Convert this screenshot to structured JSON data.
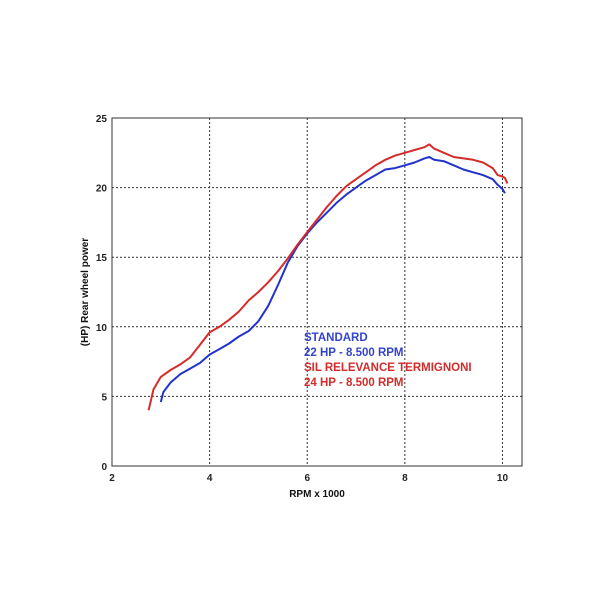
{
  "chart_data": {
    "type": "line",
    "xlabel": "RPM x 1000",
    "ylabel": "(HP) Rear wheel power",
    "xlim": [
      2,
      10.4
    ],
    "ylim": [
      0,
      25
    ],
    "x_ticks": [
      2,
      4,
      6,
      8,
      10
    ],
    "y_ticks": [
      0,
      5,
      10,
      15,
      20,
      25
    ],
    "grid": true,
    "series": [
      {
        "name": "STANDARD",
        "color": "#2233cc",
        "points": [
          [
            3.0,
            4.6
          ],
          [
            3.05,
            5.3
          ],
          [
            3.2,
            6.0
          ],
          [
            3.4,
            6.6
          ],
          [
            3.6,
            7.0
          ],
          [
            3.8,
            7.4
          ],
          [
            4.0,
            8.0
          ],
          [
            4.2,
            8.4
          ],
          [
            4.4,
            8.8
          ],
          [
            4.6,
            9.3
          ],
          [
            4.8,
            9.7
          ],
          [
            5.0,
            10.4
          ],
          [
            5.2,
            11.5
          ],
          [
            5.4,
            13.0
          ],
          [
            5.6,
            14.6
          ],
          [
            5.8,
            15.8
          ],
          [
            6.0,
            16.7
          ],
          [
            6.2,
            17.5
          ],
          [
            6.4,
            18.2
          ],
          [
            6.6,
            18.9
          ],
          [
            6.8,
            19.5
          ],
          [
            7.0,
            20.0
          ],
          [
            7.2,
            20.5
          ],
          [
            7.4,
            20.9
          ],
          [
            7.6,
            21.3
          ],
          [
            7.8,
            21.4
          ],
          [
            8.0,
            21.6
          ],
          [
            8.2,
            21.8
          ],
          [
            8.4,
            22.1
          ],
          [
            8.5,
            22.2
          ],
          [
            8.6,
            22.0
          ],
          [
            8.8,
            21.9
          ],
          [
            9.0,
            21.6
          ],
          [
            9.2,
            21.3
          ],
          [
            9.4,
            21.1
          ],
          [
            9.6,
            20.9
          ],
          [
            9.8,
            20.6
          ],
          [
            9.9,
            20.2
          ],
          [
            10.0,
            19.9
          ],
          [
            10.05,
            19.6
          ]
        ]
      },
      {
        "name": "SIL RELEVANCE TERMIGNONI",
        "color": "#d42b2b",
        "points": [
          [
            2.75,
            4.0
          ],
          [
            2.85,
            5.5
          ],
          [
            3.0,
            6.4
          ],
          [
            3.2,
            6.9
          ],
          [
            3.4,
            7.3
          ],
          [
            3.6,
            7.8
          ],
          [
            3.8,
            8.7
          ],
          [
            4.0,
            9.6
          ],
          [
            4.2,
            10.0
          ],
          [
            4.4,
            10.5
          ],
          [
            4.6,
            11.1
          ],
          [
            4.8,
            11.9
          ],
          [
            5.0,
            12.5
          ],
          [
            5.2,
            13.2
          ],
          [
            5.4,
            14.0
          ],
          [
            5.6,
            14.9
          ],
          [
            5.8,
            15.9
          ],
          [
            6.0,
            16.8
          ],
          [
            6.2,
            17.7
          ],
          [
            6.4,
            18.6
          ],
          [
            6.6,
            19.4
          ],
          [
            6.8,
            20.1
          ],
          [
            7.0,
            20.6
          ],
          [
            7.2,
            21.1
          ],
          [
            7.4,
            21.6
          ],
          [
            7.6,
            22.0
          ],
          [
            7.8,
            22.3
          ],
          [
            8.0,
            22.5
          ],
          [
            8.2,
            22.7
          ],
          [
            8.4,
            22.9
          ],
          [
            8.5,
            23.1
          ],
          [
            8.6,
            22.8
          ],
          [
            8.8,
            22.5
          ],
          [
            9.0,
            22.2
          ],
          [
            9.2,
            22.1
          ],
          [
            9.4,
            22.0
          ],
          [
            9.6,
            21.8
          ],
          [
            9.8,
            21.4
          ],
          [
            9.9,
            20.9
          ],
          [
            10.0,
            20.8
          ],
          [
            10.05,
            20.7
          ],
          [
            10.1,
            20.3
          ]
        ]
      }
    ],
    "annotations": [
      {
        "text": "STANDARD",
        "color": "#3344cc"
      },
      {
        "text": "22 HP - 8.500 RPM",
        "color": "#3344cc"
      },
      {
        "text": "SIL RELEVANCE TERMIGNONI",
        "color": "#d42b2b"
      },
      {
        "text": "24 HP - 8.500 RPM",
        "color": "#d42b2b"
      }
    ]
  }
}
